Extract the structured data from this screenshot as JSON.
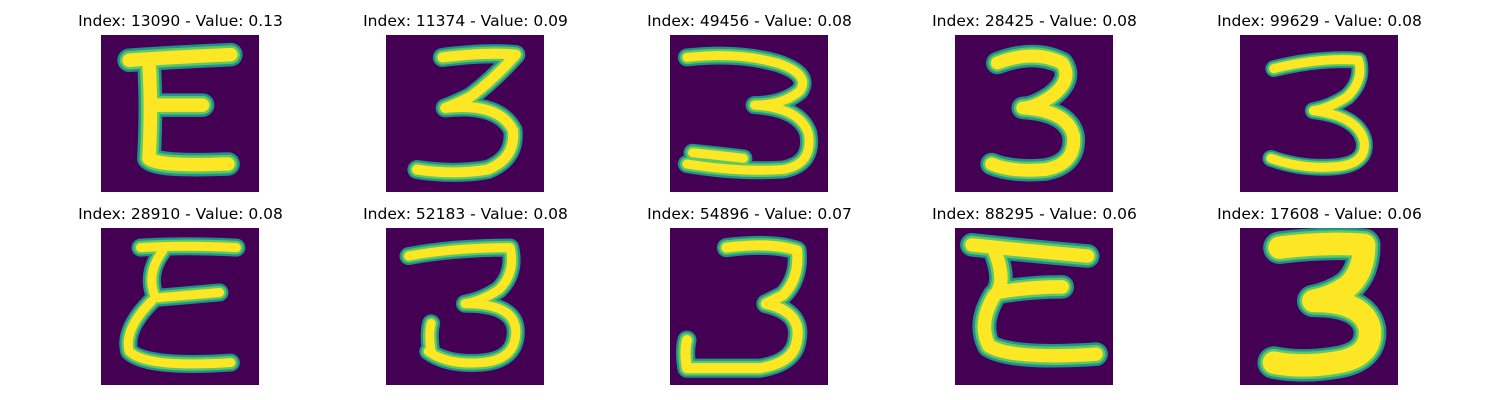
{
  "figure": {
    "colors": {
      "background": "#440154",
      "stroke_edge": "#21918c",
      "stroke_mid": "#5ec962",
      "stroke_core": "#fde725"
    },
    "panels": [
      {
        "index": "13090",
        "value": "0.13",
        "title": "Index: 13090 - Value: 0.13",
        "glyph": "E"
      },
      {
        "index": "11374",
        "value": "0.09",
        "title": "Index: 11374 - Value: 0.09",
        "glyph": "3"
      },
      {
        "index": "49456",
        "value": "0.08",
        "title": "Index: 49456 - Value: 0.08",
        "glyph": "3"
      },
      {
        "index": "28425",
        "value": "0.08",
        "title": "Index: 28425 - Value: 0.08",
        "glyph": "3"
      },
      {
        "index": "99629",
        "value": "0.08",
        "title": "Index: 99629 - Value: 0.08",
        "glyph": "3"
      },
      {
        "index": "28910",
        "value": "0.08",
        "title": "Index: 28910 - Value: 0.08",
        "glyph": "E"
      },
      {
        "index": "52183",
        "value": "0.08",
        "title": "Index: 52183 - Value: 0.08",
        "glyph": "3"
      },
      {
        "index": "54896",
        "value": "0.07",
        "title": "Index: 54896 - Value: 0.07",
        "glyph": "3"
      },
      {
        "index": "88295",
        "value": "0.06",
        "title": "Index: 88295 - Value: 0.06",
        "glyph": "E"
      },
      {
        "index": "17608",
        "value": "0.06",
        "title": "Index: 17608 - Value: 0.06",
        "glyph": "3"
      }
    ]
  }
}
